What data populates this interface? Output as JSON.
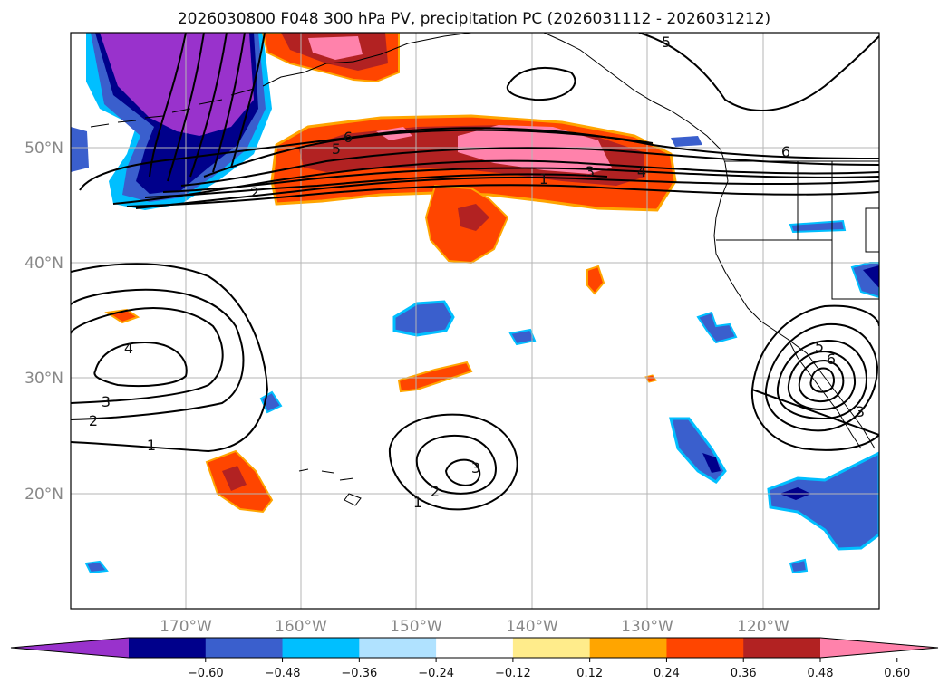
{
  "title": "2026030800 F048 300 hPa PV, precipitation PC (2026031112 - 2026031212)",
  "lat_ticks": [
    "50°N",
    "40°N",
    "30°N",
    "20°N"
  ],
  "lon_ticks": [
    "170°W",
    "160°W",
    "150°W",
    "140°W",
    "130°W",
    "120°W"
  ],
  "colorbar": {
    "ticks": [
      "−0.60",
      "−0.48",
      "−0.36",
      "−0.24",
      "−0.12",
      "0.12",
      "0.24",
      "0.36",
      "0.48",
      "0.60"
    ],
    "colors": [
      "#9932cc",
      "#00008b",
      "#3a5fcd",
      "#00bfff",
      "#b0e2ff",
      "#ffffff",
      "#ffec8b",
      "#ffa500",
      "#ff4500",
      "#b22222",
      "#ff82ab"
    ]
  },
  "contour_labels": {
    "north_jet": [
      "6",
      "5",
      "2",
      "1",
      "3",
      "4",
      "5",
      "6"
    ],
    "west_high": [
      "4",
      "3",
      "2",
      "1"
    ],
    "subtropical_low": [
      "3",
      "2",
      "1"
    ],
    "coastal_low": [
      "5",
      "6",
      "3"
    ]
  }
}
